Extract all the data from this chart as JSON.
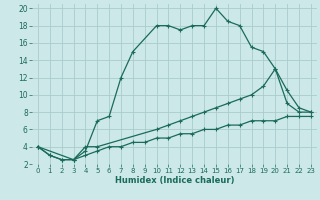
{
  "title": "",
  "xlabel": "Humidex (Indice chaleur)",
  "bg_color": "#cce8e8",
  "grid_color": "#aacccc",
  "line_color": "#1a6b5a",
  "xlim": [
    -0.5,
    23.5
  ],
  "ylim": [
    2,
    20.5
  ],
  "xticks": [
    0,
    1,
    2,
    3,
    4,
    5,
    6,
    7,
    8,
    9,
    10,
    11,
    12,
    13,
    14,
    15,
    16,
    17,
    18,
    19,
    20,
    21,
    22,
    23
  ],
  "yticks": [
    2,
    4,
    6,
    8,
    10,
    12,
    14,
    16,
    18,
    20
  ],
  "line1_x": [
    0,
    1,
    2,
    3,
    4,
    5,
    6,
    7,
    8,
    10,
    11,
    12,
    13,
    14,
    15,
    16,
    17,
    18,
    19,
    20,
    21,
    22,
    23
  ],
  "line1_y": [
    4,
    3,
    2.5,
    2.5,
    3.5,
    7,
    7.5,
    12,
    15,
    18,
    18,
    17.5,
    18,
    18,
    20,
    18.5,
    18,
    15.5,
    15,
    13,
    10.5,
    8.5,
    8
  ],
  "line2_x": [
    0,
    3,
    4,
    5,
    10,
    11,
    12,
    13,
    14,
    15,
    16,
    17,
    18,
    19,
    20,
    21,
    22,
    23
  ],
  "line2_y": [
    4,
    2.5,
    4,
    4,
    6,
    6.5,
    7,
    7.5,
    8,
    8.5,
    9,
    9.5,
    10,
    11,
    13,
    9,
    8,
    8
  ],
  "line3_x": [
    0,
    1,
    2,
    3,
    4,
    5,
    6,
    7,
    8,
    9,
    10,
    11,
    12,
    13,
    14,
    15,
    16,
    17,
    18,
    19,
    20,
    21,
    22,
    23
  ],
  "line3_y": [
    4,
    3,
    2.5,
    2.5,
    3,
    3.5,
    4,
    4,
    4.5,
    4.5,
    5,
    5,
    5.5,
    5.5,
    6,
    6,
    6.5,
    6.5,
    7,
    7,
    7,
    7.5,
    7.5,
    7.5
  ]
}
